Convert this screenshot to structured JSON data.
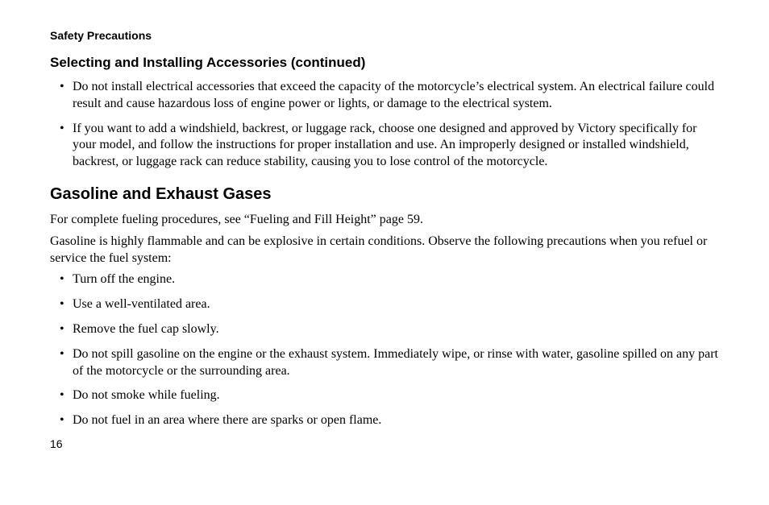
{
  "running_head": "Safety Precautions",
  "subheading": "Selecting and Installing Accessories (continued)",
  "top_bullets": [
    "Do not install electrical accessories that exceed the capacity of the motorcycle’s electrical system. An electrical failure could result and cause hazardous loss of engine power or lights, or damage to the electrical system.",
    "If you want to add a windshield, backrest, or luggage rack, choose one designed and approved by Victory specifically for your model, and follow the instructions for proper installation and use. An improperly designed or installed windshield, backrest, or luggage rack can reduce stability, causing you to lose control of the motorcycle."
  ],
  "section_heading": "Gasoline and Exhaust Gases",
  "para1": "For complete fueling procedures, see “Fueling and Fill Height” page 59.",
  "para2": "Gasoline is highly flammable and can be explosive in certain conditions. Observe the following precautions when you refuel or service the fuel system:",
  "bottom_bullets": [
    "Turn off the engine.",
    "Use a well-ventilated area.",
    "Remove the fuel cap slowly.",
    "Do not spill gasoline on the engine or the exhaust system. Immediately wipe, or rinse with water, gasoline spilled on any part of the motorcycle or the surrounding area.",
    "Do not smoke while fueling.",
    "Do not fuel in an area where there are sparks or open flame."
  ],
  "page_number": "16"
}
